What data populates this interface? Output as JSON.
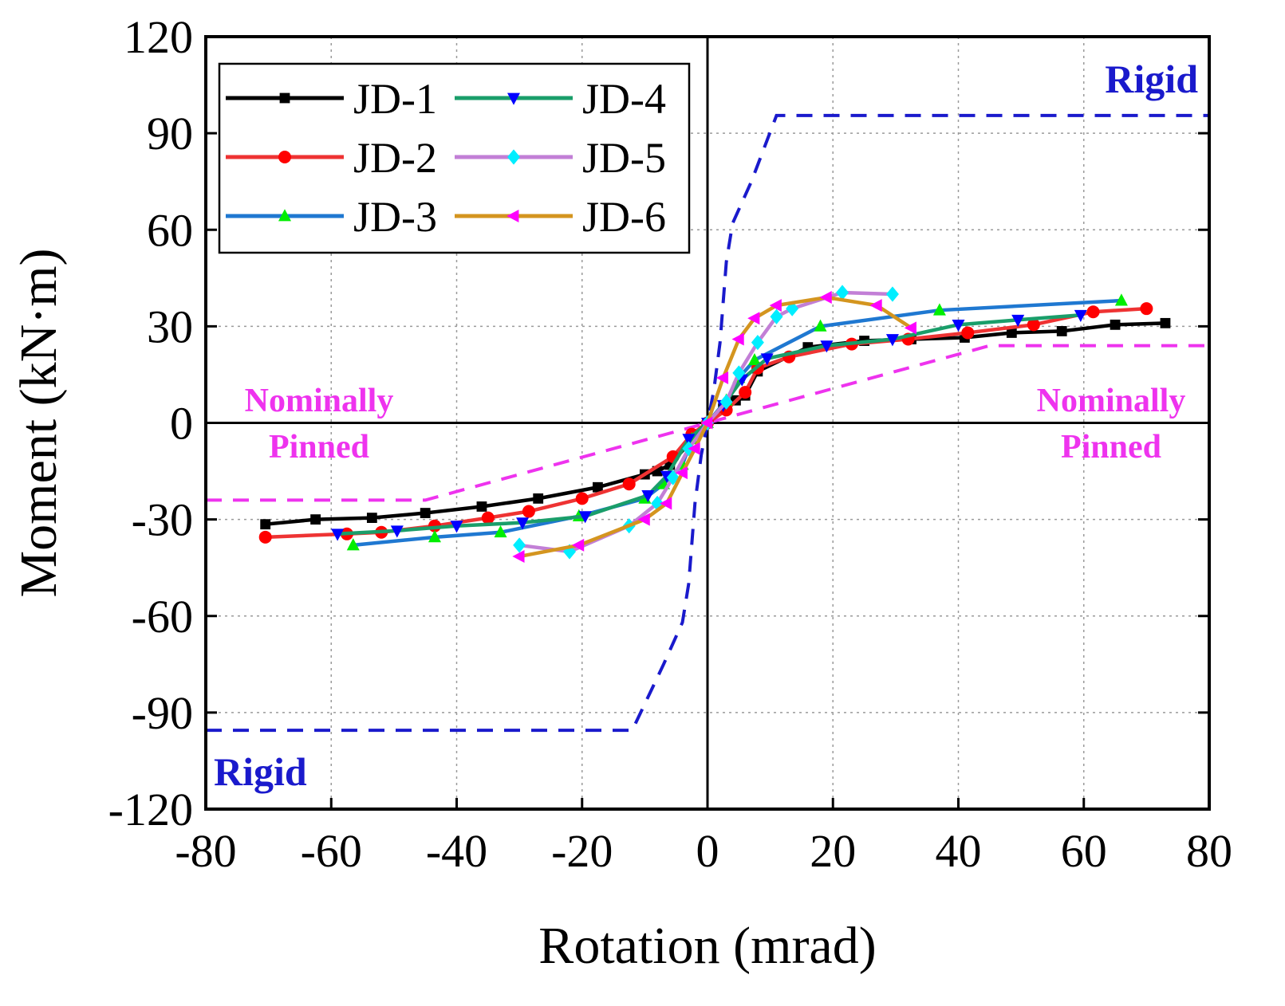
{
  "chart_data": {
    "type": "line",
    "title": "",
    "xlabel": "Rotation (mrad)",
    "ylabel": "Moment (kN·m)",
    "xlim": [
      -80,
      80
    ],
    "ylim": [
      -120,
      120
    ],
    "xticks": [
      -80,
      -60,
      -40,
      -20,
      0,
      20,
      40,
      60,
      80
    ],
    "yticks": [
      -120,
      -90,
      -60,
      -30,
      0,
      30,
      60,
      90,
      120
    ],
    "xtick_labels": [
      "-80",
      "-60",
      "-40",
      "-20",
      "0",
      "20",
      "40",
      "60",
      "80"
    ],
    "ytick_labels": [
      "-120",
      "-90",
      "-60",
      "-30",
      "0",
      "30",
      "60",
      "90",
      "120"
    ],
    "grid": true,
    "legend_position": "top-left",
    "series": [
      {
        "name": "JD-1",
        "color": "#000000",
        "marker": "square",
        "x": [
          -70.5,
          -62.5,
          -53.5,
          -45,
          -36,
          -27,
          -17.5,
          -10,
          -8,
          -6,
          0,
          2.5,
          4.5,
          6,
          8,
          16,
          25,
          32.5,
          41,
          48.5,
          56.5,
          65,
          73
        ],
        "y": [
          -31.5,
          -30,
          -29.5,
          -28,
          -26,
          -23.5,
          -20,
          -16,
          -15,
          -13,
          0,
          4.5,
          7,
          8.5,
          16,
          23.5,
          25.5,
          26,
          26.5,
          28,
          28.5,
          30.5,
          31
        ]
      },
      {
        "name": "JD-2",
        "color": "#ee3333",
        "marker": "circle",
        "x": [
          -70.5,
          -57.5,
          -52,
          -43.5,
          -35,
          -28.5,
          -20,
          -12.5,
          -5.5,
          -2.5,
          0,
          3,
          6,
          8,
          13,
          23,
          32,
          41.5,
          52,
          61.5,
          70
        ],
        "y": [
          -35.5,
          -34.5,
          -34,
          -32,
          -29.5,
          -27.5,
          -23.5,
          -19,
          -10.5,
          -3.5,
          0,
          4,
          9.5,
          17,
          20.5,
          24.5,
          26,
          28,
          30.5,
          34.5,
          35.5
        ]
      },
      {
        "name": "JD-3",
        "color": "#1f78d1",
        "marker": "triangle-up",
        "x": [
          -56.5,
          -43.5,
          -33,
          -20.5,
          -10,
          -7,
          -4,
          -2.5,
          0,
          3,
          5,
          7.5,
          18,
          37,
          66
        ],
        "y": [
          -38,
          -35.5,
          -34,
          -29,
          -23.5,
          -19,
          -13,
          -5,
          0,
          7,
          14,
          19.5,
          30,
          35,
          38
        ]
      },
      {
        "name": "JD-4",
        "color": "#1a9e6a",
        "marker": "triangle-down",
        "x": [
          -59,
          -49.5,
          -40,
          -29.5,
          -19.5,
          -9.5,
          -6.5,
          -3,
          0,
          2.5,
          5.5,
          9.5,
          19,
          29.5,
          40,
          49.5,
          59.5
        ],
        "y": [
          -34.5,
          -33.5,
          -32,
          -31,
          -29,
          -22.5,
          -16.5,
          -5,
          0,
          5.5,
          13.5,
          20,
          24,
          26,
          30.5,
          32,
          33.5
        ]
      },
      {
        "name": "JD-5",
        "color": "#c27fd6",
        "marker": "diamond",
        "x": [
          -30,
          -22,
          -12.5,
          -8,
          -5.5,
          -3,
          0,
          3,
          5,
          8,
          11,
          13.5,
          21.5,
          29.5
        ],
        "y": [
          -38,
          -40,
          -32,
          -25,
          -17,
          -8,
          0,
          6.5,
          15.5,
          25,
          33,
          35.5,
          40.5,
          40
        ]
      },
      {
        "name": "JD-6",
        "color": "#d4951f",
        "marker": "triangle-left",
        "x": [
          -30,
          -20.5,
          -10,
          -6.5,
          -4,
          -2,
          0,
          2.5,
          5,
          7.5,
          11,
          19,
          27,
          32.5
        ],
        "y": [
          -41.5,
          -38,
          -30,
          -25,
          -15.5,
          -8,
          0,
          14,
          26,
          32.5,
          36.5,
          39,
          36.5,
          29.5
        ]
      }
    ],
    "reference_lines": [
      {
        "name": "Rigid",
        "color": "#1a1acc",
        "style": "dashed",
        "x": [
          -80,
          -12,
          -7,
          -4,
          -3,
          -2,
          -1,
          0,
          1,
          2,
          3,
          4,
          7,
          11,
          80
        ],
        "y": [
          -95.5,
          -95.5,
          -75,
          -62,
          -50,
          -25,
          -10,
          0,
          10,
          25,
          50,
          62,
          75,
          95.5,
          95.5
        ]
      },
      {
        "name": "Nominally Pinned",
        "color": "#ee33ee",
        "style": "dashed",
        "x": [
          -80,
          -45,
          0,
          45,
          80
        ],
        "y": [
          -24,
          -24,
          0,
          24,
          24
        ]
      }
    ],
    "annotations": [
      {
        "text": "Rigid",
        "color": "#1a1acc",
        "position": "top-right"
      },
      {
        "text": "Rigid",
        "color": "#1a1acc",
        "position": "bottom-left"
      },
      {
        "lines": [
          "Nominally",
          "Pinned"
        ],
        "color": "#ee33ee",
        "position": "middle-left"
      },
      {
        "lines": [
          "Nominally",
          "Pinned"
        ],
        "color": "#ee33ee",
        "position": "middle-right"
      }
    ]
  }
}
